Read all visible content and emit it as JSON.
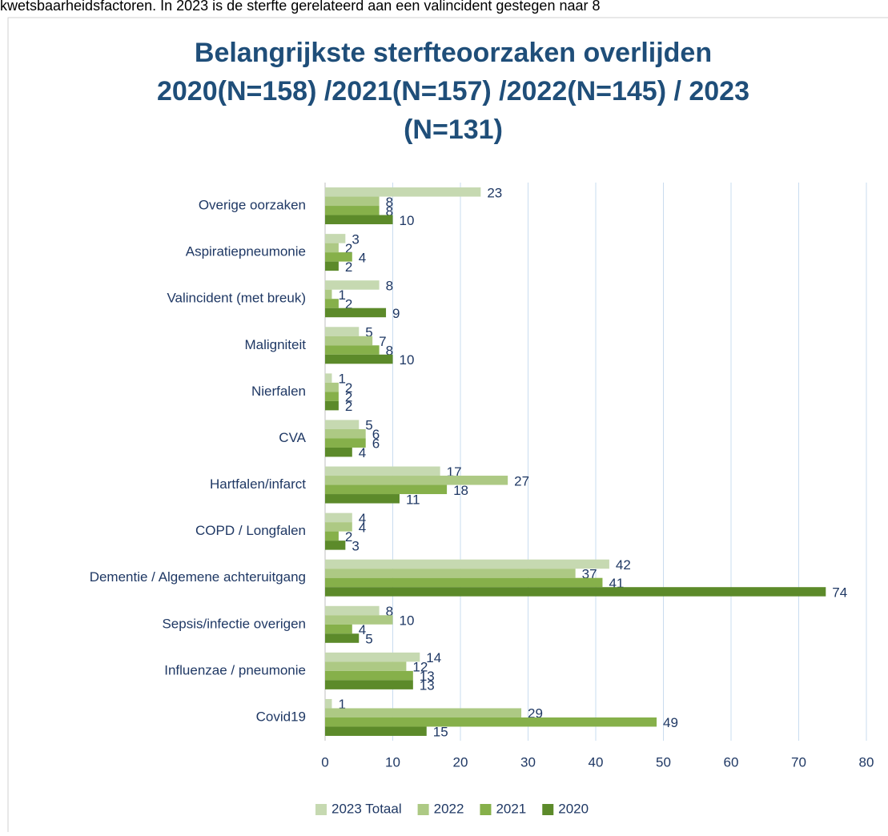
{
  "header_text": "kwetsbaarheidsfactoren. In 2023 is de sterfte gerelateerd aan een valincident gestegen naar 8",
  "chart_data": {
    "type": "hbar",
    "title_lines": [
      "Belangrijkste sterfteoorzaken overlijden",
      "2020(N=158) /2021(N=157) /2022(N=145) / 2023",
      "(N=131)"
    ],
    "categories": [
      "Overige oorzaken",
      "Aspiratiepneumonie",
      "Valincident (met breuk)",
      "Maligniteit",
      "Nierfalen",
      "CVA",
      "Hartfalen/infarct",
      "COPD / Longfalen",
      "Dementie / Algemene achteruitgang",
      "Sepsis/infectie overigen",
      "Influenzae / pneumonie",
      "Covid19"
    ],
    "series": [
      {
        "name": "2023 Totaal",
        "color": "#c6d9b1",
        "values": [
          23,
          3,
          8,
          5,
          1,
          5,
          17,
          4,
          42,
          8,
          14,
          1
        ]
      },
      {
        "name": "2022",
        "color": "#adc984",
        "values": [
          8,
          2,
          1,
          7,
          2,
          6,
          27,
          4,
          37,
          10,
          12,
          29
        ]
      },
      {
        "name": "2021",
        "color": "#86b04a",
        "values": [
          8,
          4,
          2,
          8,
          2,
          6,
          18,
          2,
          41,
          4,
          13,
          49
        ]
      },
      {
        "name": "2020",
        "color": "#5c8a2a",
        "values": [
          10,
          2,
          9,
          10,
          2,
          4,
          11,
          3,
          74,
          5,
          13,
          15
        ]
      }
    ],
    "xlim": [
      0,
      80
    ],
    "xticks": [
      0,
      10,
      20,
      30,
      40,
      50,
      60,
      70,
      80
    ],
    "grid": true,
    "legend": "bottom"
  }
}
